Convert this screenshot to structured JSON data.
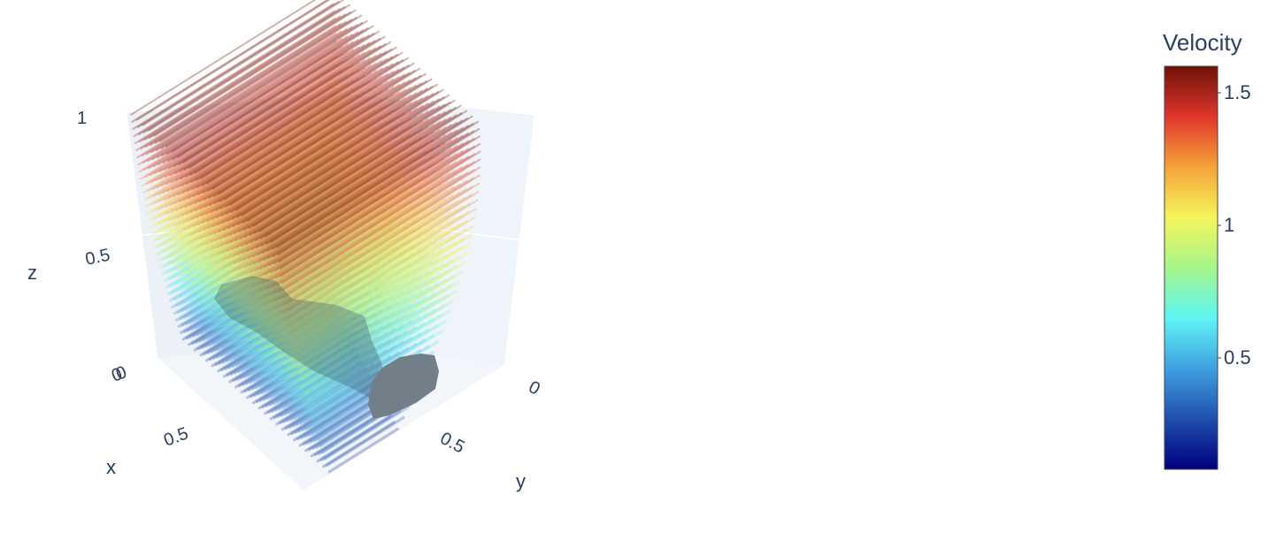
{
  "chart_data": {
    "type": "scatter3d",
    "title": "",
    "axes": {
      "x": {
        "label": "x",
        "range": [
          0,
          1
        ],
        "ticks": [
          "0",
          "0.5"
        ]
      },
      "y": {
        "label": "y",
        "range": [
          0,
          1
        ],
        "ticks": [
          "0",
          "0.5"
        ]
      },
      "z": {
        "label": "z",
        "range": [
          0,
          1
        ],
        "ticks": [
          "0",
          "0.5",
          "1"
        ]
      }
    },
    "colorbar": {
      "title": "Velocity",
      "min": 0.08,
      "max": 1.6,
      "ticks": [
        "0.5",
        "1",
        "1.5"
      ],
      "tick_values": [
        0.5,
        1,
        1.5
      ],
      "colorscale": [
        "#00007f",
        "#1f4fae",
        "#3fa0e0",
        "#5ff5f5",
        "#a6f58a",
        "#f5f55a",
        "#f5a33a",
        "#e0352b",
        "#6e1208"
      ]
    },
    "obstacle_color": "#737f88",
    "grid": true,
    "legend": "right"
  }
}
